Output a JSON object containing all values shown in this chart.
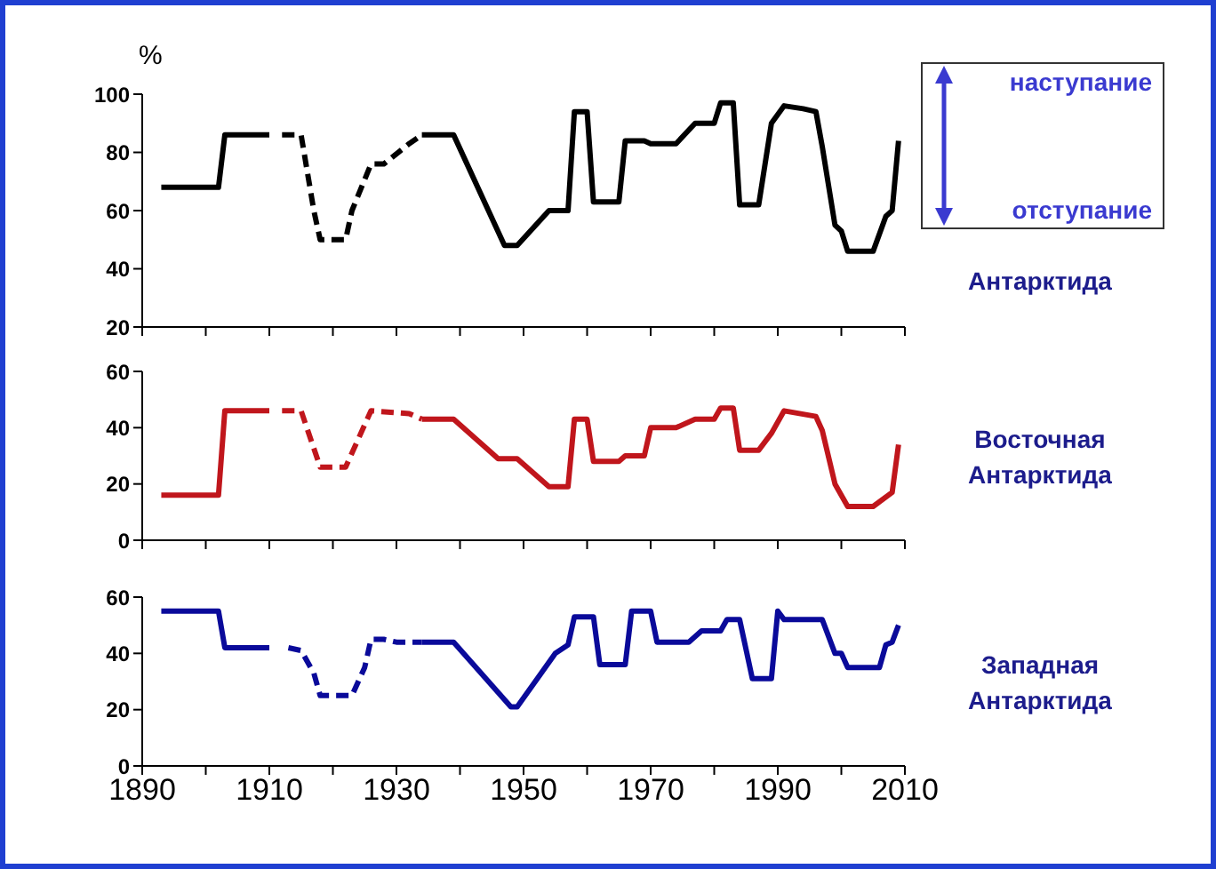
{
  "chart_data": [
    {
      "type": "line",
      "ylabel": "%",
      "xlim": [
        1890,
        2010
      ],
      "xticks": [
        1890,
        {
          "value": 1900,
          "label": null
        },
        1910,
        {
          "value": 1920,
          "label": null
        },
        1930,
        {
          "value": 1940,
          "label": null
        },
        1950,
        {
          "value": 1960,
          "label": null
        },
        1970,
        {
          "value": 1980,
          "label": null
        },
        1990,
        {
          "value": 2000,
          "label": null
        },
        2010
      ],
      "ylim": [
        20,
        100
      ],
      "yticks": [
        20,
        40,
        60,
        80,
        100
      ],
      "tick_labels": "y",
      "annotations": [
        "наступание",
        "отступание",
        "Антарктида"
      ],
      "series": [
        {
          "color": "#000000",
          "line_style": "solid",
          "x": [
            1893,
            1902,
            1903,
            1910
          ],
          "values": [
            68,
            68,
            86,
            86
          ]
        },
        {
          "color": "#000000",
          "line_style": "dashed",
          "x": [
            1912,
            1915,
            1917,
            1918,
            1922,
            1923,
            1926,
            1928,
            1932,
            1934
          ],
          "values": [
            86,
            86,
            60,
            50,
            50,
            60,
            76,
            76,
            83,
            86
          ]
        },
        {
          "color": "#000000",
          "line_style": "solid",
          "x": [
            1934,
            1939,
            1947,
            1949,
            1954,
            1957,
            1958,
            1960,
            1961,
            1965,
            1966,
            1969,
            1970,
            1974,
            1977,
            1980,
            1981,
            1983,
            1984,
            1987,
            1989,
            1991,
            1994,
            1996,
            1997,
            1999,
            2000,
            2001,
            2005,
            2007,
            2008,
            2009
          ],
          "values": [
            86,
            86,
            48,
            48,
            60,
            60,
            94,
            94,
            63,
            63,
            84,
            84,
            83,
            83,
            90,
            90,
            97,
            97,
            62,
            62,
            90,
            96,
            95,
            94,
            82,
            55,
            53,
            46,
            46,
            58,
            60,
            84
          ]
        }
      ]
    },
    {
      "type": "line",
      "xlim": [
        1890,
        2010
      ],
      "xticks": [
        1890,
        {
          "value": 1900,
          "label": null
        },
        1910,
        {
          "value": 1920,
          "label": null
        },
        1930,
        {
          "value": 1940,
          "label": null
        },
        1950,
        {
          "value": 1960,
          "label": null
        },
        1970,
        {
          "value": 1980,
          "label": null
        },
        1990,
        {
          "value": 2000,
          "label": null
        },
        2010
      ],
      "ylim": [
        0,
        60
      ],
      "yticks": [
        0,
        20,
        40,
        60
      ],
      "tick_labels": "y",
      "annotations": [
        "Восточная Антарктида"
      ],
      "series": [
        {
          "color": "#c0161c",
          "line_style": "solid",
          "x": [
            1893,
            1902,
            1903,
            1910
          ],
          "values": [
            16,
            16,
            46,
            46
          ]
        },
        {
          "color": "#c0161c",
          "line_style": "dashed",
          "x": [
            1912,
            1915,
            1918,
            1922,
            1926,
            1932,
            1934
          ],
          "values": [
            46,
            46,
            26,
            26,
            46,
            45,
            43
          ]
        },
        {
          "color": "#c0161c",
          "line_style": "solid",
          "x": [
            1934,
            1939,
            1946,
            1949,
            1954,
            1957,
            1958,
            1960,
            1961,
            1965,
            1966,
            1969,
            1970,
            1974,
            1977,
            1980,
            1981,
            1983,
            1984,
            1987,
            1989,
            1991,
            1996,
            1997,
            1999,
            2001,
            2005,
            2008,
            2009
          ],
          "values": [
            43,
            43,
            29,
            29,
            19,
            19,
            43,
            43,
            28,
            28,
            30,
            30,
            40,
            40,
            43,
            43,
            47,
            47,
            32,
            32,
            38,
            46,
            44,
            39,
            20,
            12,
            12,
            17,
            34
          ]
        }
      ]
    },
    {
      "type": "line",
      "xlim": [
        1890,
        2010
      ],
      "xticks": [
        1890,
        {
          "value": 1900,
          "label": null
        },
        1910,
        {
          "value": 1920,
          "label": null
        },
        1930,
        {
          "value": 1940,
          "label": null
        },
        1950,
        {
          "value": 1960,
          "label": null
        },
        1970,
        {
          "value": 1980,
          "label": null
        },
        1990,
        {
          "value": 2000,
          "label": null
        },
        2010
      ],
      "ylim": [
        0,
        60
      ],
      "yticks": [
        0,
        20,
        40,
        60
      ],
      "annotations": [
        "Западная Антарктида"
      ],
      "series": [
        {
          "color": "#0a0a9a",
          "line_style": "solid",
          "x": [
            1893,
            1902,
            1903,
            1910
          ],
          "values": [
            55,
            55,
            42,
            42
          ]
        },
        {
          "color": "#0a0a9a",
          "line_style": "dashed",
          "x": [
            1913,
            1915,
            1917,
            1918,
            1923,
            1925,
            1926,
            1928,
            1930,
            1934
          ],
          "values": [
            42,
            41,
            33,
            25,
            25,
            35,
            45,
            45,
            44,
            44
          ]
        },
        {
          "color": "#0a0a9a",
          "line_style": "solid",
          "x": [
            1934,
            1939,
            1948,
            1949,
            1955,
            1957,
            1958,
            1961,
            1962,
            1966,
            1967,
            1970,
            1971,
            1976,
            1978,
            1981,
            1982,
            1984,
            1986,
            1989,
            1990,
            1991,
            1997,
            1999,
            2000,
            2001,
            2006,
            2007,
            2008,
            2009
          ],
          "values": [
            44,
            44,
            21,
            21,
            40,
            43,
            53,
            53,
            36,
            36,
            55,
            55,
            44,
            44,
            48,
            48,
            52,
            52,
            31,
            31,
            55,
            52,
            52,
            40,
            40,
            35,
            35,
            43,
            44,
            50
          ]
        }
      ]
    }
  ]
}
